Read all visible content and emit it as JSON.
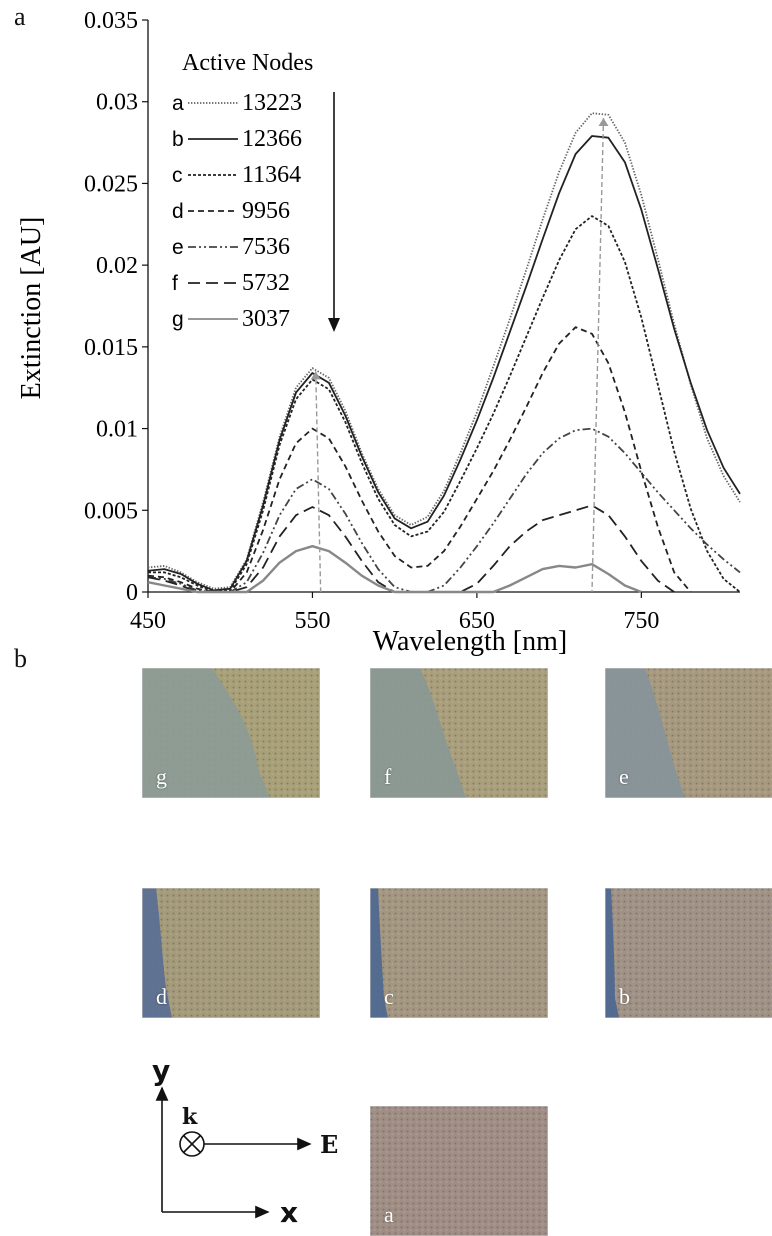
{
  "panels": {
    "a_label": "a",
    "b_label": "b"
  },
  "chart_data": {
    "type": "line",
    "title": "",
    "xlabel": "Wavelength [nm]",
    "ylabel": "Extinction [AU]",
    "xlim": [
      450,
      810
    ],
    "ylim": [
      0,
      0.035
    ],
    "xticks": [
      450,
      550,
      650,
      750
    ],
    "xtick_labels": [
      "450",
      "550",
      "650",
      "750"
    ],
    "yticks": [
      0,
      0.005,
      0.01,
      0.015,
      0.02,
      0.025,
      0.03,
      0.035
    ],
    "ytick_labels": [
      "0",
      "0.005",
      "0.01",
      "0.015",
      "0.02",
      "0.025",
      "0.03",
      "0.035"
    ],
    "grid": false,
    "legend": {
      "title": "Active Nodes",
      "placement": "top-left"
    },
    "series": [
      {
        "id": "a",
        "name": "13223",
        "dash": "dotted",
        "color": "#666666",
        "peak1": 0.0137,
        "peak2": 0.0293,
        "x": [
          450,
          460,
          470,
          480,
          490,
          500,
          510,
          520,
          530,
          540,
          550,
          560,
          570,
          580,
          590,
          600,
          610,
          620,
          630,
          640,
          650,
          660,
          670,
          680,
          690,
          700,
          710,
          720,
          730,
          740,
          750,
          760,
          770,
          780,
          790,
          800,
          810
        ],
        "y": [
          0.0015,
          0.0016,
          0.0012,
          0.0006,
          0.0002,
          0.0003,
          0.002,
          0.0055,
          0.0095,
          0.0125,
          0.0137,
          0.0131,
          0.0111,
          0.0085,
          0.0063,
          0.0047,
          0.0041,
          0.0046,
          0.0062,
          0.0085,
          0.011,
          0.0138,
          0.0167,
          0.0197,
          0.0228,
          0.0257,
          0.0281,
          0.0293,
          0.0292,
          0.0275,
          0.0243,
          0.0204,
          0.0164,
          0.0127,
          0.0094,
          0.0071,
          0.0055
        ]
      },
      {
        "id": "b",
        "name": "12366",
        "dash": "solid",
        "color": "#222222",
        "peak1": 0.0134,
        "peak2": 0.0279,
        "x": [
          450,
          460,
          470,
          480,
          490,
          500,
          510,
          520,
          530,
          540,
          550,
          560,
          570,
          580,
          590,
          600,
          610,
          620,
          630,
          640,
          650,
          660,
          670,
          680,
          690,
          700,
          710,
          720,
          730,
          740,
          750,
          760,
          770,
          780,
          790,
          800,
          810
        ],
        "y": [
          0.0013,
          0.0014,
          0.0011,
          0.0005,
          0.0001,
          0.0002,
          0.0019,
          0.0053,
          0.0093,
          0.0122,
          0.0134,
          0.0128,
          0.0108,
          0.0083,
          0.0061,
          0.0045,
          0.0039,
          0.0043,
          0.0059,
          0.0081,
          0.0105,
          0.0131,
          0.0159,
          0.0187,
          0.0216,
          0.0244,
          0.0268,
          0.0279,
          0.0278,
          0.0263,
          0.0234,
          0.0198,
          0.0161,
          0.0128,
          0.0099,
          0.0076,
          0.006
        ]
      },
      {
        "id": "c",
        "name": "11364",
        "dash": "dashed-fine",
        "color": "#222222",
        "peak1": 0.013,
        "peak2": 0.023,
        "x": [
          450,
          460,
          470,
          480,
          490,
          500,
          510,
          520,
          530,
          540,
          550,
          560,
          570,
          580,
          590,
          600,
          610,
          620,
          630,
          640,
          650,
          660,
          670,
          680,
          690,
          700,
          710,
          720,
          730,
          740,
          750,
          760,
          770,
          780,
          790,
          800,
          810
        ],
        "y": [
          0.0012,
          0.0012,
          0.0009,
          0.0004,
          0.0,
          0.0001,
          0.0017,
          0.005,
          0.009,
          0.0118,
          0.013,
          0.0124,
          0.0104,
          0.0079,
          0.0057,
          0.0041,
          0.0034,
          0.0037,
          0.0049,
          0.0068,
          0.0088,
          0.0109,
          0.0132,
          0.0156,
          0.018,
          0.0203,
          0.0222,
          0.023,
          0.0224,
          0.0202,
          0.0168,
          0.0127,
          0.0086,
          0.0051,
          0.0025,
          0.0008,
          0.0
        ]
      },
      {
        "id": "d",
        "name": "9956",
        "dash": "dashed",
        "color": "#222222",
        "peak1": 0.01,
        "peak2": 0.0162,
        "x": [
          450,
          460,
          470,
          480,
          490,
          500,
          510,
          520,
          530,
          540,
          550,
          560,
          570,
          580,
          590,
          600,
          610,
          620,
          630,
          640,
          650,
          660,
          670,
          680,
          690,
          700,
          710,
          720,
          730,
          740,
          750,
          760,
          770,
          780
        ],
        "y": [
          0.001,
          0.0009,
          0.0006,
          0.0002,
          0.0,
          0.0,
          0.0012,
          0.0038,
          0.0069,
          0.0091,
          0.01,
          0.0094,
          0.0077,
          0.0056,
          0.0037,
          0.0022,
          0.0015,
          0.0016,
          0.0025,
          0.004,
          0.0057,
          0.0074,
          0.0093,
          0.0113,
          0.0134,
          0.0152,
          0.0162,
          0.0158,
          0.014,
          0.011,
          0.0074,
          0.004,
          0.0012,
          0.0
        ]
      },
      {
        "id": "e",
        "name": "7536",
        "dash": "dash-dot-dot",
        "color": "#444444",
        "peak1": 0.0069,
        "peak2": 0.01,
        "x": [
          450,
          460,
          470,
          480,
          490,
          500,
          510,
          520,
          530,
          540,
          550,
          560,
          570,
          580,
          590,
          600,
          610,
          620,
          630,
          640,
          650,
          660,
          670,
          680,
          690,
          700,
          710,
          720,
          730,
          740,
          750,
          760,
          770,
          780,
          790,
          800,
          810
        ],
        "y": [
          0.0009,
          0.0008,
          0.0005,
          0.0001,
          0.0,
          0.0,
          0.0006,
          0.0024,
          0.0047,
          0.0063,
          0.0069,
          0.0063,
          0.0048,
          0.003,
          0.0014,
          0.0003,
          0.0,
          0.0,
          0.0004,
          0.0015,
          0.0028,
          0.0042,
          0.0057,
          0.0072,
          0.0085,
          0.0094,
          0.0099,
          0.01,
          0.0095,
          0.0085,
          0.0073,
          0.0061,
          0.005,
          0.0039,
          0.0029,
          0.002,
          0.0012
        ]
      },
      {
        "id": "f",
        "name": "5732",
        "dash": "long-dash",
        "color": "#222222",
        "peak1": 0.0052,
        "peak2": 0.0053,
        "x": [
          450,
          460,
          470,
          480,
          490,
          500,
          510,
          520,
          530,
          540,
          550,
          560,
          570,
          580,
          590,
          600,
          610,
          620,
          630,
          640,
          650,
          660,
          670,
          680,
          690,
          700,
          710,
          720,
          730,
          740,
          750,
          760,
          770
        ],
        "y": [
          0.0009,
          0.0007,
          0.0004,
          0.0,
          0.0,
          0.0,
          0.0003,
          0.0015,
          0.0034,
          0.0047,
          0.0052,
          0.0047,
          0.0034,
          0.0019,
          0.0006,
          0.0,
          0.0,
          0.0,
          0.0,
          0.0,
          0.0005,
          0.0016,
          0.0028,
          0.0037,
          0.0044,
          0.0047,
          0.005,
          0.0053,
          0.0047,
          0.0034,
          0.0019,
          0.0007,
          0.0
        ]
      },
      {
        "id": "g",
        "name": "3037",
        "dash": "solid",
        "color": "#888888",
        "peak1": 0.0028,
        "peak2": 0.0017,
        "x": [
          450,
          460,
          470,
          480,
          490,
          500,
          510,
          520,
          530,
          540,
          550,
          560,
          570,
          580,
          590,
          600,
          610,
          620,
          630,
          640,
          650,
          660,
          670,
          680,
          690,
          700,
          710,
          720,
          730,
          740,
          750
        ],
        "y": [
          0.0006,
          0.0004,
          0.0002,
          0.0,
          0.0,
          0.0,
          0.0,
          0.0007,
          0.0018,
          0.0025,
          0.0028,
          0.0025,
          0.0018,
          0.001,
          0.0004,
          0.0,
          0.0,
          0.0,
          0.0,
          0.0,
          0.0,
          0.0,
          0.0004,
          0.0009,
          0.0014,
          0.0016,
          0.0015,
          0.0017,
          0.0011,
          0.0004,
          0.0
        ]
      }
    ],
    "peak_markers": [
      {
        "from": [
          552,
          0.0135
        ],
        "to": [
          555,
          0.0
        ]
      },
      {
        "from": [
          727,
          0.029
        ],
        "to": [
          720,
          0.0
        ]
      }
    ]
  },
  "legend_arrow": true,
  "images": [
    {
      "label": "g",
      "colors": {
        "base": "#8c9b96",
        "field": "#a8a079"
      }
    },
    {
      "label": "f",
      "colors": {
        "base": "#8a9895",
        "field": "#a99f7d"
      }
    },
    {
      "label": "e",
      "colors": {
        "base": "#87949a",
        "field": "#a7997f"
      }
    },
    {
      "label": "d",
      "colors": {
        "base": "#5a6f93",
        "field": "#a49a7c"
      }
    },
    {
      "label": "c",
      "colors": {
        "base": "#4e6892",
        "field": "#a39683"
      }
    },
    {
      "label": "b",
      "colors": {
        "base": "#4c6793",
        "field": "#a09286"
      }
    },
    {
      "label": "a",
      "colors": {
        "base": "#6a7c86",
        "field": "#a08e86"
      }
    }
  ],
  "axes_legend": {
    "y": "y",
    "x": "x",
    "k": "k",
    "E": "E"
  }
}
